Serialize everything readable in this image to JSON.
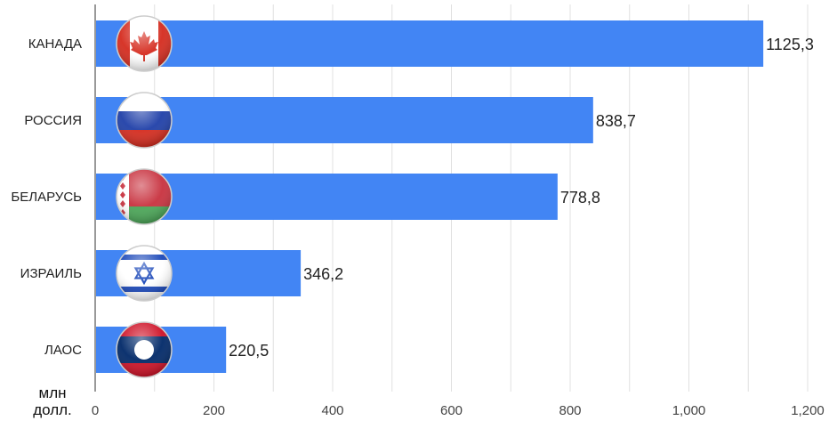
{
  "chart_data": {
    "type": "bar",
    "orientation": "horizontal",
    "categories": [
      "КАНАДА",
      "РОССИЯ",
      "БЕЛАРУСЬ",
      "ИЗРАИЛЬ",
      "ЛАОС"
    ],
    "values": [
      1125.3,
      838.7,
      778.8,
      346.2,
      220.5
    ],
    "value_labels": [
      "1125,3",
      "838,7",
      "778,8",
      "346,2",
      "220,5"
    ],
    "flag_icons": [
      "canada-flag-icon",
      "russia-flag-icon",
      "belarus-flag-icon",
      "israel-flag-icon",
      "laos-flag-icon"
    ],
    "xlim": [
      0,
      1200
    ],
    "x_ticks": [
      0,
      200,
      400,
      600,
      800,
      1000,
      1200
    ],
    "x_tick_labels": [
      "0",
      "200",
      "400",
      "600",
      "800",
      "1,000",
      "1,200"
    ],
    "unit_label_line1": "млн",
    "unit_label_line2": "долл.",
    "grid": true,
    "colors": {
      "bar": "#4285f4",
      "grid": "#e0e0e0",
      "axis": "#333333"
    }
  }
}
